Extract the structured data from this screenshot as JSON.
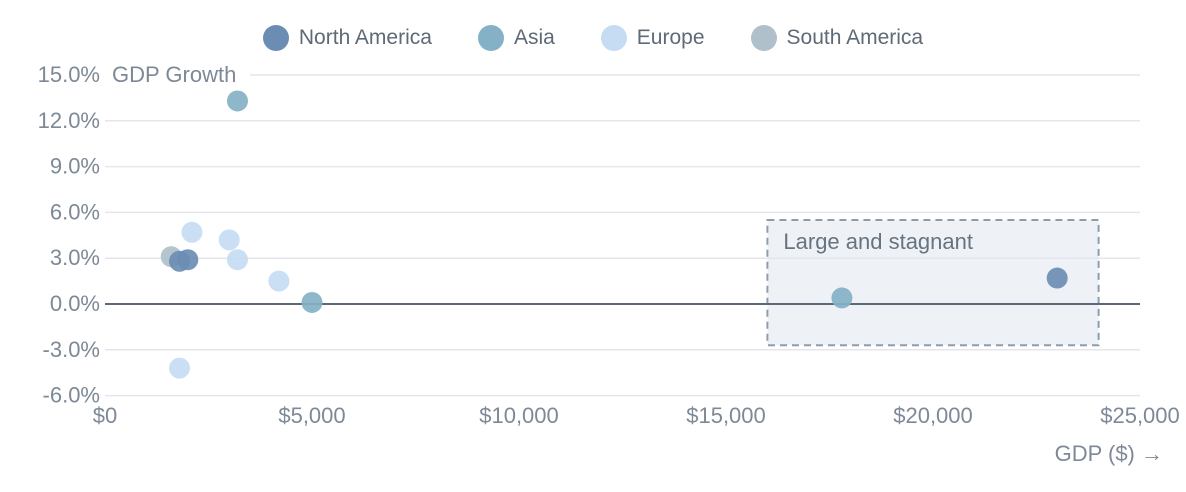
{
  "legend": {
    "items": [
      {
        "label": "North America",
        "color": "#6b8db3"
      },
      {
        "label": "Asia",
        "color": "#84b1c6"
      },
      {
        "label": "Europe",
        "color": "#c6dcf2"
      },
      {
        "label": "South America",
        "color": "#afc0ca"
      }
    ]
  },
  "chart_data": {
    "type": "scatter",
    "title": "",
    "x_axis": {
      "title": "GDP ($) →",
      "range": [
        0,
        25000
      ],
      "tick_values": [
        0,
        5000,
        10000,
        15000,
        20000,
        25000
      ],
      "tick_labels": [
        "$0",
        "$5,000",
        "$10,000",
        "$15,000",
        "$20,000",
        "$25,000"
      ]
    },
    "y_axis": {
      "title": "GDP Growth",
      "range": [
        -6,
        15
      ],
      "tick_values": [
        15,
        12,
        9,
        6,
        3,
        0,
        -3,
        -6
      ],
      "tick_labels": [
        "15.0%",
        "12.0%",
        "9.0%",
        "6.0%",
        "3.0%",
        "0.0%",
        "-3.0%",
        "-6.0%"
      ]
    },
    "grid": "horizontal",
    "zero_line": true,
    "legend_position": "top",
    "series": [
      {
        "name": "North America",
        "color": "#6b8db3",
        "points": [
          {
            "x": 1800,
            "y": 2.8
          },
          {
            "x": 2000,
            "y": 2.9
          },
          {
            "x": 23000,
            "y": 1.7
          }
        ]
      },
      {
        "name": "Asia",
        "color": "#84b1c6",
        "points": [
          {
            "x": 3200,
            "y": 13.3
          },
          {
            "x": 5000,
            "y": 0.1
          },
          {
            "x": 17800,
            "y": 0.4
          }
        ]
      },
      {
        "name": "Europe",
        "color": "#c6dcf2",
        "points": [
          {
            "x": 2100,
            "y": 4.7
          },
          {
            "x": 3000,
            "y": 4.2
          },
          {
            "x": 3200,
            "y": 2.9
          },
          {
            "x": 4200,
            "y": 1.5
          },
          {
            "x": 1800,
            "y": -4.2
          }
        ]
      },
      {
        "name": "South America",
        "color": "#afc0ca",
        "points": [
          {
            "x": 1600,
            "y": 3.1
          }
        ]
      }
    ],
    "annotation": {
      "label": "Large and stagnant",
      "x1": 16000,
      "x2": 24000,
      "y1": -2.7,
      "y2": 5.5
    }
  },
  "colors": {
    "background": "#ffffff",
    "grid": "#e4e6ec",
    "zero_line": "#5d6877",
    "tick_text": "#7d8997",
    "axis_title_text": "#7d8997",
    "legend_text": "#5e6a76",
    "annotation_border": "#8e9cab",
    "annotation_fill": "rgba(224,232,241,0.55)",
    "annotation_text": "#67737f"
  }
}
